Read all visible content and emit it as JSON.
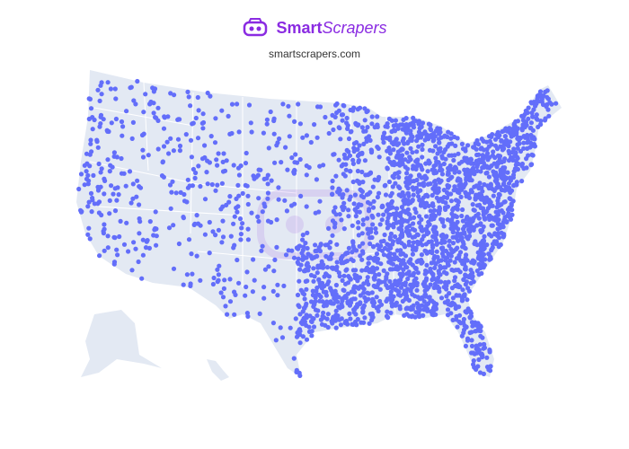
{
  "header": {
    "brand_bold": "Smart",
    "brand_italic": "Scrapers",
    "site": "smartscrapers.com",
    "logo_icon": "vr-headset-icon"
  },
  "map": {
    "region": "United States",
    "land_color": "#e3e9f3",
    "border_color": "#ffffff",
    "point_color": "#636efa",
    "brand_color": "#8a2be2"
  }
}
